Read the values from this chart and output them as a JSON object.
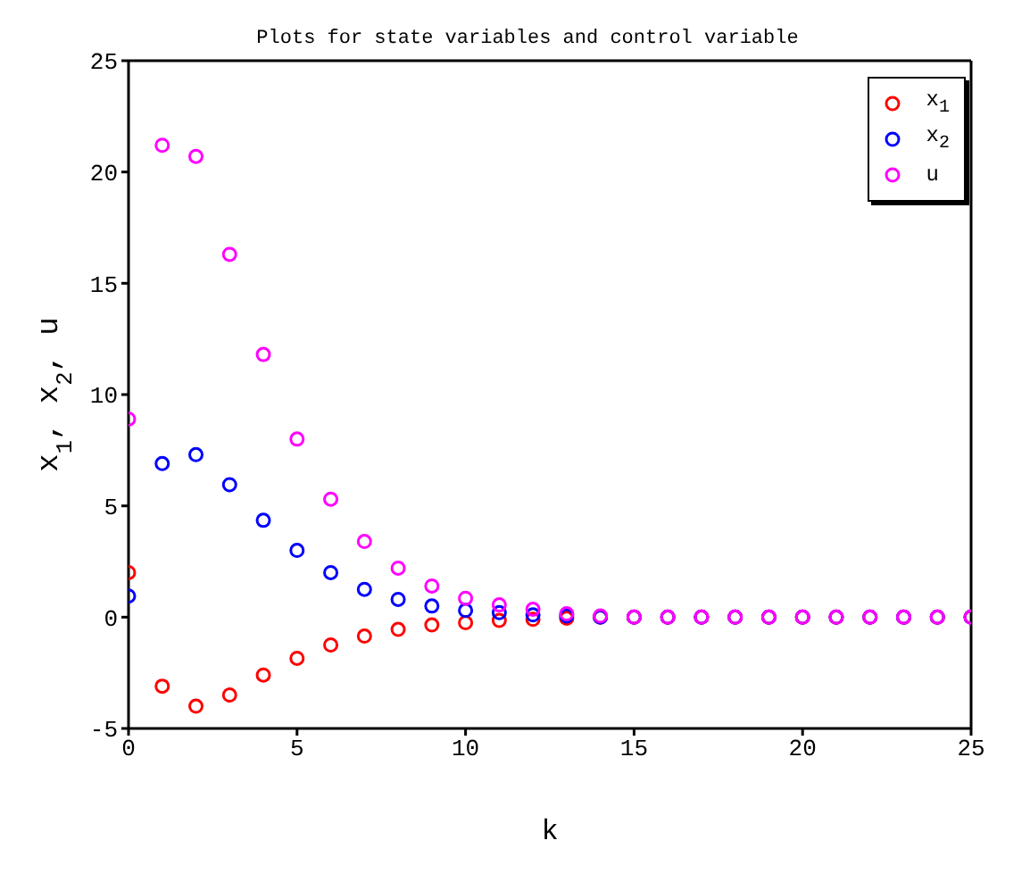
{
  "chart_data": {
    "type": "scatter",
    "title": "Plots for state variables and control variable",
    "xlabel": "k",
    "ylabel": "x$_{1}$, x$_{2}$, u",
    "x": [
      0,
      1,
      2,
      3,
      4,
      5,
      6,
      7,
      8,
      9,
      10,
      11,
      12,
      13,
      14,
      15,
      16,
      17,
      18,
      19,
      20,
      21,
      22,
      23,
      24,
      25
    ],
    "series": [
      {
        "name": "x$_{1}$",
        "color": "#ff0000",
        "values": [
          2.0,
          -3.1,
          -4.0,
          -3.5,
          -2.6,
          -1.85,
          -1.25,
          -0.85,
          -0.55,
          -0.35,
          -0.25,
          -0.15,
          -0.1,
          -0.05,
          0,
          0,
          0,
          0,
          0,
          0,
          0,
          0,
          0,
          0,
          0,
          0
        ]
      },
      {
        "name": "x$_{2}$",
        "color": "#0000ff",
        "values": [
          0.95,
          6.9,
          7.3,
          5.95,
          4.35,
          3.0,
          2.0,
          1.25,
          0.8,
          0.5,
          0.3,
          0.2,
          0.1,
          0.05,
          0,
          0,
          0,
          0,
          0,
          0,
          0,
          0,
          0,
          0,
          0,
          0
        ]
      },
      {
        "name": "u",
        "color": "#ff00ff",
        "values": [
          8.9,
          21.2,
          20.7,
          16.3,
          11.8,
          8.0,
          5.3,
          3.4,
          2.2,
          1.4,
          0.85,
          0.55,
          0.35,
          0.15,
          0.05,
          0,
          0,
          0,
          0,
          0,
          0,
          0,
          0,
          0,
          0,
          0
        ]
      }
    ],
    "xlim": [
      0,
      25
    ],
    "xticks": [
      0,
      5,
      10,
      15,
      20,
      25
    ],
    "ylim": [
      -5,
      25
    ],
    "yticks": [
      -5,
      0,
      5,
      10,
      15,
      20,
      25
    ],
    "grid": false,
    "legend": "top right",
    "marker": "circle"
  }
}
